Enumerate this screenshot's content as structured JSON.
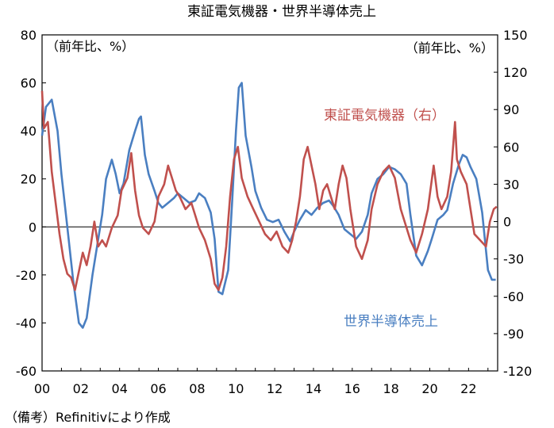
{
  "chart_data": {
    "type": "line",
    "title": "東証電気機器・世界半導体売上",
    "left_axis_unit": "（前年比、%）",
    "right_axis_unit": "（前年比、%）",
    "footnote": "（備考）Refinitivにより作成",
    "x_range": [
      2000,
      2023.5
    ],
    "x_tick_labels": [
      "00",
      "02",
      "04",
      "06",
      "08",
      "10",
      "12",
      "14",
      "16",
      "18",
      "20",
      "22"
    ],
    "x_tick_values": [
      2000,
      2002,
      2004,
      2006,
      2008,
      2010,
      2012,
      2014,
      2016,
      2018,
      2020,
      2022
    ],
    "y_left": {
      "range": [
        -60,
        80
      ],
      "ticks": [
        80,
        60,
        40,
        20,
        0,
        -20,
        -40,
        -60
      ]
    },
    "y_right": {
      "range": [
        -120,
        150
      ],
      "ticks": [
        150,
        120,
        90,
        60,
        30,
        0,
        -30,
        -60,
        -90,
        -120
      ]
    },
    "grid": false,
    "colors": {
      "semis": "#4a7fc1",
      "electric": "#c0504d"
    },
    "series": [
      {
        "name": "世界半導体売上",
        "axis": "left",
        "color": "#4a7fc1",
        "points": [
          [
            2000.0,
            38
          ],
          [
            2000.2,
            50
          ],
          [
            2000.5,
            53
          ],
          [
            2000.8,
            40
          ],
          [
            2001.0,
            22
          ],
          [
            2001.3,
            0
          ],
          [
            2001.6,
            -22
          ],
          [
            2001.9,
            -40
          ],
          [
            2002.1,
            -42
          ],
          [
            2002.3,
            -38
          ],
          [
            2002.6,
            -20
          ],
          [
            2002.9,
            -5
          ],
          [
            2003.1,
            5
          ],
          [
            2003.3,
            20
          ],
          [
            2003.6,
            28
          ],
          [
            2003.8,
            22
          ],
          [
            2004.0,
            14
          ],
          [
            2004.2,
            18
          ],
          [
            2004.5,
            32
          ],
          [
            2004.8,
            40
          ],
          [
            2005.0,
            45
          ],
          [
            2005.1,
            46
          ],
          [
            2005.3,
            30
          ],
          [
            2005.5,
            22
          ],
          [
            2005.8,
            15
          ],
          [
            2006.0,
            10
          ],
          [
            2006.2,
            8
          ],
          [
            2006.5,
            10
          ],
          [
            2006.8,
            12
          ],
          [
            2007.0,
            14
          ],
          [
            2007.3,
            12
          ],
          [
            2007.6,
            10
          ],
          [
            2007.9,
            11
          ],
          [
            2008.1,
            14
          ],
          [
            2008.4,
            12
          ],
          [
            2008.7,
            6
          ],
          [
            2008.9,
            -5
          ],
          [
            2009.1,
            -27
          ],
          [
            2009.3,
            -28
          ],
          [
            2009.6,
            -18
          ],
          [
            2009.8,
            10
          ],
          [
            2010.0,
            40
          ],
          [
            2010.15,
            58
          ],
          [
            2010.3,
            60
          ],
          [
            2010.5,
            38
          ],
          [
            2010.8,
            25
          ],
          [
            2011.0,
            15
          ],
          [
            2011.3,
            8
          ],
          [
            2011.6,
            3
          ],
          [
            2011.9,
            2
          ],
          [
            2012.2,
            3
          ],
          [
            2012.5,
            -2
          ],
          [
            2012.8,
            -6
          ],
          [
            2013.0,
            -2
          ],
          [
            2013.3,
            3
          ],
          [
            2013.6,
            7
          ],
          [
            2013.9,
            5
          ],
          [
            2014.2,
            8
          ],
          [
            2014.5,
            10
          ],
          [
            2014.8,
            11
          ],
          [
            2015.0,
            9
          ],
          [
            2015.3,
            5
          ],
          [
            2015.6,
            -1
          ],
          [
            2015.9,
            -3
          ],
          [
            2016.2,
            -5
          ],
          [
            2016.5,
            -2
          ],
          [
            2016.8,
            5
          ],
          [
            2017.0,
            14
          ],
          [
            2017.3,
            20
          ],
          [
            2017.6,
            22
          ],
          [
            2017.9,
            25
          ],
          [
            2018.2,
            24
          ],
          [
            2018.5,
            22
          ],
          [
            2018.8,
            18
          ],
          [
            2019.0,
            5
          ],
          [
            2019.3,
            -12
          ],
          [
            2019.6,
            -16
          ],
          [
            2019.9,
            -10
          ],
          [
            2020.1,
            -5
          ],
          [
            2020.4,
            3
          ],
          [
            2020.7,
            5
          ],
          [
            2020.9,
            7
          ],
          [
            2021.2,
            18
          ],
          [
            2021.5,
            26
          ],
          [
            2021.7,
            30
          ],
          [
            2021.9,
            29
          ],
          [
            2022.1,
            25
          ],
          [
            2022.4,
            20
          ],
          [
            2022.7,
            6
          ],
          [
            2023.0,
            -18
          ],
          [
            2023.2,
            -22
          ],
          [
            2023.4,
            -22
          ]
        ]
      },
      {
        "name": "東証電気機器（右）",
        "axis": "right",
        "color": "#c0504d",
        "points": [
          [
            2000.0,
            105
          ],
          [
            2000.1,
            75
          ],
          [
            2000.3,
            80
          ],
          [
            2000.5,
            40
          ],
          [
            2000.7,
            15
          ],
          [
            2000.9,
            -10
          ],
          [
            2001.1,
            -30
          ],
          [
            2001.3,
            -42
          ],
          [
            2001.5,
            -45
          ],
          [
            2001.7,
            -55
          ],
          [
            2001.9,
            -40
          ],
          [
            2002.1,
            -25
          ],
          [
            2002.3,
            -35
          ],
          [
            2002.5,
            -20
          ],
          [
            2002.7,
            0
          ],
          [
            2002.9,
            -20
          ],
          [
            2003.1,
            -15
          ],
          [
            2003.3,
            -20
          ],
          [
            2003.6,
            -5
          ],
          [
            2003.9,
            5
          ],
          [
            2004.1,
            25
          ],
          [
            2004.4,
            35
          ],
          [
            2004.6,
            55
          ],
          [
            2004.8,
            25
          ],
          [
            2005.0,
            5
          ],
          [
            2005.2,
            -5
          ],
          [
            2005.5,
            -10
          ],
          [
            2005.8,
            0
          ],
          [
            2006.0,
            20
          ],
          [
            2006.3,
            30
          ],
          [
            2006.5,
            45
          ],
          [
            2006.7,
            35
          ],
          [
            2006.9,
            25
          ],
          [
            2007.1,
            20
          ],
          [
            2007.4,
            10
          ],
          [
            2007.7,
            15
          ],
          [
            2007.9,
            5
          ],
          [
            2008.1,
            -5
          ],
          [
            2008.4,
            -15
          ],
          [
            2008.7,
            -30
          ],
          [
            2008.9,
            -50
          ],
          [
            2009.1,
            -55
          ],
          [
            2009.3,
            -45
          ],
          [
            2009.5,
            -20
          ],
          [
            2009.7,
            20
          ],
          [
            2009.9,
            50
          ],
          [
            2010.1,
            60
          ],
          [
            2010.3,
            35
          ],
          [
            2010.6,
            20
          ],
          [
            2010.9,
            10
          ],
          [
            2011.2,
            0
          ],
          [
            2011.5,
            -10
          ],
          [
            2011.8,
            -15
          ],
          [
            2012.1,
            -8
          ],
          [
            2012.4,
            -20
          ],
          [
            2012.7,
            -25
          ],
          [
            2012.9,
            -15
          ],
          [
            2013.1,
            0
          ],
          [
            2013.3,
            20
          ],
          [
            2013.5,
            50
          ],
          [
            2013.7,
            60
          ],
          [
            2013.9,
            45
          ],
          [
            2014.1,
            30
          ],
          [
            2014.3,
            10
          ],
          [
            2014.5,
            25
          ],
          [
            2014.7,
            30
          ],
          [
            2014.9,
            20
          ],
          [
            2015.1,
            10
          ],
          [
            2015.3,
            30
          ],
          [
            2015.5,
            45
          ],
          [
            2015.7,
            35
          ],
          [
            2015.9,
            10
          ],
          [
            2016.2,
            -20
          ],
          [
            2016.5,
            -30
          ],
          [
            2016.8,
            -15
          ],
          [
            2017.0,
            10
          ],
          [
            2017.3,
            30
          ],
          [
            2017.6,
            40
          ],
          [
            2017.9,
            45
          ],
          [
            2018.2,
            35
          ],
          [
            2018.5,
            10
          ],
          [
            2018.8,
            -5
          ],
          [
            2019.0,
            -15
          ],
          [
            2019.3,
            -25
          ],
          [
            2019.6,
            -10
          ],
          [
            2019.9,
            10
          ],
          [
            2020.2,
            45
          ],
          [
            2020.4,
            20
          ],
          [
            2020.6,
            10
          ],
          [
            2020.9,
            20
          ],
          [
            2021.1,
            40
          ],
          [
            2021.3,
            80
          ],
          [
            2021.4,
            50
          ],
          [
            2021.6,
            40
          ],
          [
            2021.9,
            30
          ],
          [
            2022.1,
            10
          ],
          [
            2022.3,
            -10
          ],
          [
            2022.6,
            -15
          ],
          [
            2022.9,
            -20
          ],
          [
            2023.1,
            0
          ],
          [
            2023.3,
            10
          ],
          [
            2023.45,
            12
          ]
        ]
      }
    ]
  }
}
